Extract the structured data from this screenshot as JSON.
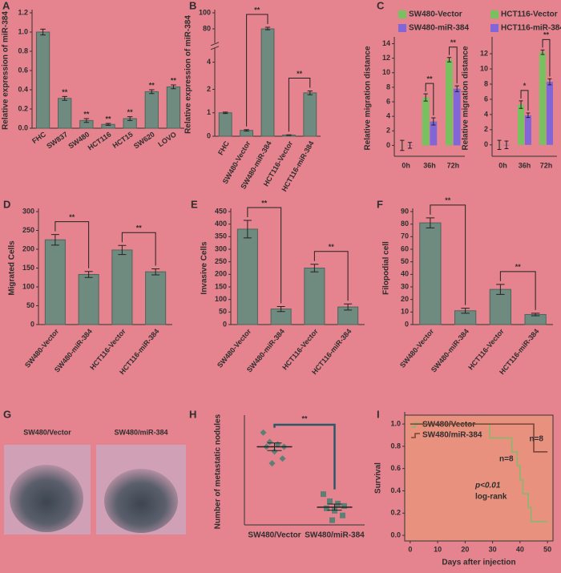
{
  "chart_data": [
    {
      "panel": "A",
      "type": "bar",
      "ylabel": "Relative expression of miR-384",
      "categories": [
        "FHC",
        "SW837",
        "SW480",
        "HCT116",
        "HCT15",
        "SW620",
        "LOVO"
      ],
      "values": [
        1.0,
        0.31,
        0.08,
        0.04,
        0.1,
        0.38,
        0.43
      ],
      "errors": [
        0.03,
        0.02,
        0.02,
        0.01,
        0.02,
        0.02,
        0.02
      ],
      "significance": [
        null,
        "**",
        "**",
        "**",
        "**",
        "**",
        "**"
      ],
      "color": "#6f8b80",
      "ylim": [
        0,
        1.2
      ],
      "yticks": [
        {
          "value": 0,
          "label": "0.0"
        },
        0.2,
        0.4,
        0.6,
        0.8,
        {
          "value": 1,
          "label": "1.0"
        },
        1.2
      ]
    },
    {
      "panel": "B",
      "type": "bar",
      "ylabel": "Relative expression of miR-384",
      "axis_break": true,
      "categories": [
        "FHC",
        "SW480-Vector",
        "SW480-miR-384",
        "HCT116-Vector",
        "HCT116-miR-384"
      ],
      "values": [
        1.0,
        0.25,
        80,
        0.05,
        1.85
      ],
      "errors": [
        0.03,
        0.03,
        2,
        0.01,
        0.08
      ],
      "significance": [
        "**",
        "**"
      ],
      "color": "#6f8b80",
      "ylim": [
        0,
        100
      ],
      "yticks": [
        0,
        1,
        2,
        4,
        80,
        100
      ]
    },
    {
      "panel": "C",
      "type": "grouped_bar",
      "ylabel": "Relative migration distance",
      "categories": [
        "0h",
        "36h",
        "72h"
      ],
      "series": [
        {
          "name": "SW480-Vector",
          "color": "#77c25f",
          "values": [
            0,
            6.6,
            11.8
          ],
          "errors": [
            0.7,
            0.5,
            0.3
          ]
        },
        {
          "name": "SW480-miR-384",
          "color": "#8266d8",
          "values": [
            0,
            3.3,
            7.8
          ],
          "errors": [
            0.4,
            0.5,
            0.4
          ]
        }
      ],
      "significance": [
        "**",
        "**"
      ],
      "ylim": [
        -1.5,
        14.5
      ],
      "yticks": [
        0,
        2,
        4,
        6,
        8,
        10,
        12,
        14
      ]
    },
    {
      "type": "grouped_bar",
      "ylabel": "Relative migration distance",
      "categories": [
        "0h",
        "36h",
        "72h"
      ],
      "series": [
        {
          "name": "HCT116-Vector",
          "color": "#77c25f",
          "values": [
            0,
            5.3,
            12.2
          ],
          "errors": [
            0.6,
            0.5,
            0.3
          ]
        },
        {
          "name": "HCT116-miR-384",
          "color": "#8266d8",
          "values": [
            0,
            3.9,
            8.3
          ],
          "errors": [
            0.5,
            0.3,
            0.4
          ]
        }
      ],
      "significance": [
        "*",
        "**"
      ],
      "ylim": [
        -1.5,
        13.8
      ],
      "yticks": [
        0,
        2,
        4,
        6,
        8,
        10,
        12
      ]
    },
    {
      "panel": "D",
      "type": "bar",
      "ylabel": "Migrated Cells",
      "categories": [
        "SW480-Vector",
        "SW480-miR-384",
        "HCT116-Vector",
        "HCT116-miR-384"
      ],
      "values": [
        225,
        133,
        198,
        140
      ],
      "errors": [
        14,
        8,
        12,
        8
      ],
      "significance": [
        "**",
        "**"
      ],
      "color": "#6f8b80",
      "ylim": [
        0,
        300
      ],
      "yticks": [
        0,
        50,
        100,
        150,
        200,
        250,
        300
      ]
    },
    {
      "panel": "E",
      "type": "bar",
      "ylabel": "Invasive Cells",
      "categories": [
        "SW480-Vector",
        "SW480-miR-384",
        "HCT116-Vector",
        "HCT116-miR-384"
      ],
      "values": [
        380,
        62,
        225,
        70
      ],
      "errors": [
        35,
        10,
        15,
        12
      ],
      "significance": [
        "**",
        "**"
      ],
      "color": "#6f8b80",
      "ylim": [
        0,
        450
      ],
      "yticks": [
        0,
        50,
        100,
        150,
        200,
        250,
        300,
        350,
        400,
        450
      ]
    },
    {
      "panel": "F",
      "type": "bar",
      "ylabel": "Filopodial cell",
      "categories": [
        "SW480-Vector",
        "SW480-miR-384",
        "HCT116-Vector",
        "HCT116-miR-384"
      ],
      "values": [
        81,
        11,
        28,
        8
      ],
      "errors": [
        4,
        2,
        4,
        1
      ],
      "significance": [
        "**",
        "**"
      ],
      "color": "#6f8b80",
      "ylim": [
        0,
        90
      ],
      "yticks": [
        0,
        10,
        20,
        30,
        40,
        50,
        60,
        70,
        80,
        90
      ]
    },
    {
      "panel": "G",
      "type": "image",
      "labels": [
        "SW480/Vector",
        "SW480/miR-384"
      ]
    },
    {
      "panel": "H",
      "type": "dot",
      "ylabel": "Number of  metastatic nodules",
      "categories": [
        "SW480/Vector",
        "SW480/miR-384"
      ],
      "values": [
        [
          39,
          35,
          34,
          33,
          33,
          31,
          28,
          26
        ],
        [
          13,
          10,
          9,
          8,
          7,
          6,
          4,
          2
        ]
      ],
      "means": [
        33,
        7.5
      ],
      "sems": [
        1.6,
        1.3
      ],
      "significance": [
        "**"
      ],
      "color": "#5d7f74",
      "ylim": [
        0,
        45
      ]
    },
    {
      "panel": "I",
      "type": "survival",
      "xlabel": "Days after injection",
      "ylabel": "Survival",
      "series": [
        {
          "name": "SW480/Vector",
          "color": "#86b870",
          "x": [
            0,
            29,
            37,
            39,
            40,
            41,
            43,
            44,
            50
          ],
          "values": [
            1,
            0.875,
            0.75,
            0.625,
            0.5,
            0.375,
            0.25,
            0.125,
            0.125
          ]
        },
        {
          "name": "SW480/miR-384",
          "color": "#7a4536",
          "x": [
            0,
            45,
            50
          ],
          "values": [
            1,
            0.75,
            0.75
          ]
        }
      ],
      "annotations": [
        "n=8",
        "n=8",
        "p<0.01",
        "log-rank"
      ],
      "xlim": [
        -2,
        52
      ],
      "xticks": [
        0,
        10,
        20,
        30,
        40,
        50
      ],
      "ylim": [
        -0.05,
        1.08
      ],
      "yticks": [
        {
          "value": 0,
          "label": "0.0"
        },
        0.2,
        0.4,
        0.6,
        0.8,
        {
          "value": 1,
          "label": "1.0"
        }
      ]
    }
  ]
}
